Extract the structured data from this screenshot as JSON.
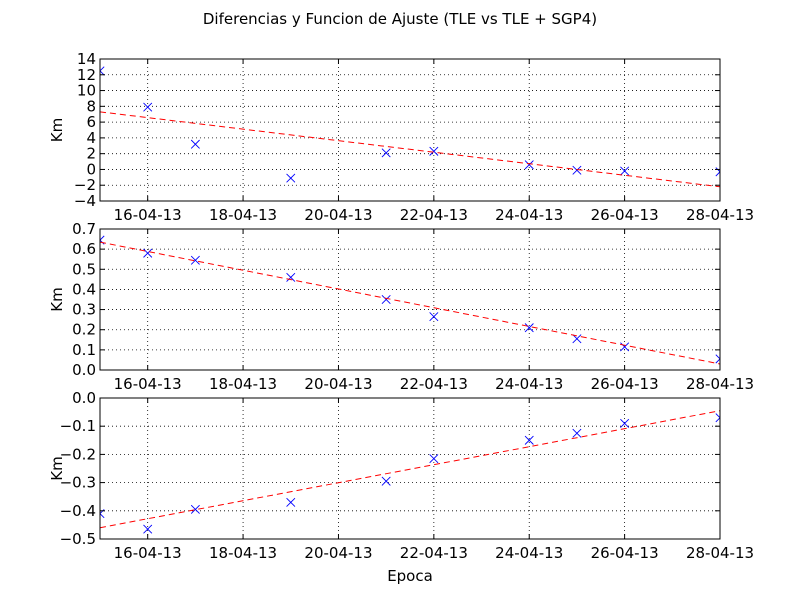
{
  "figure": {
    "title": "Diferencias y Funcion de Ajuste (TLE vs TLE + SGP4)",
    "xlabel": "Epoca"
  },
  "chart_data": [
    {
      "type": "scatter",
      "ylabel": "Km",
      "xlim": [
        "15-04-13",
        "28-04-13"
      ],
      "ylim": [
        -4,
        14
      ],
      "grid": true,
      "x_ticks": [
        "16-04-13",
        "18-04-13",
        "20-04-13",
        "22-04-13",
        "24-04-13",
        "26-04-13",
        "28-04-13"
      ],
      "y_ticks": [
        "−4",
        "−2",
        "0",
        "2",
        "4",
        "6",
        "8",
        "10",
        "12",
        "14"
      ],
      "y_tick_values": [
        -4,
        -2,
        0,
        2,
        4,
        6,
        8,
        10,
        12,
        14
      ],
      "series": [
        {
          "marker": "x",
          "color": "#0000ff",
          "x": [
            "15-04-13",
            "16-04-13",
            "17-04-13",
            "19-04-13",
            "21-04-13",
            "22-04-13",
            "24-04-13",
            "25-04-13",
            "26-04-13",
            "28-04-13"
          ],
          "y": [
            12.5,
            7.9,
            3.2,
            -1.1,
            2.1,
            2.3,
            0.6,
            -0.1,
            -0.2,
            -0.3
          ]
        },
        {
          "line": "dashed",
          "color": "#ff0000",
          "x": [
            "15-04-13",
            "28-04-13"
          ],
          "y": [
            7.3,
            -2.2
          ]
        }
      ]
    },
    {
      "type": "scatter",
      "ylabel": "Km",
      "xlim": [
        "15-04-13",
        "28-04-13"
      ],
      "ylim": [
        0.0,
        0.7
      ],
      "grid": true,
      "x_ticks": [
        "16-04-13",
        "18-04-13",
        "20-04-13",
        "22-04-13",
        "24-04-13",
        "26-04-13",
        "28-04-13"
      ],
      "y_ticks": [
        "0.0",
        "0.1",
        "0.2",
        "0.3",
        "0.4",
        "0.5",
        "0.6",
        "0.7"
      ],
      "y_tick_values": [
        0.0,
        0.1,
        0.2,
        0.3,
        0.4,
        0.5,
        0.6,
        0.7
      ],
      "series": [
        {
          "marker": "x",
          "color": "#0000ff",
          "x": [
            "15-04-13",
            "16-04-13",
            "17-04-13",
            "19-04-13",
            "21-04-13",
            "22-04-13",
            "24-04-13",
            "25-04-13",
            "26-04-13",
            "28-04-13"
          ],
          "y": [
            0.645,
            0.58,
            0.545,
            0.46,
            0.35,
            0.265,
            0.21,
            0.155,
            0.115,
            0.055
          ]
        },
        {
          "line": "dashed",
          "color": "#ff0000",
          "x": [
            "15-04-13",
            "28-04-13"
          ],
          "y": [
            0.635,
            0.03
          ]
        }
      ]
    },
    {
      "type": "scatter",
      "ylabel": "Km",
      "xlim": [
        "15-04-13",
        "28-04-13"
      ],
      "ylim": [
        -0.5,
        0.0
      ],
      "grid": true,
      "x_ticks": [
        "16-04-13",
        "18-04-13",
        "20-04-13",
        "22-04-13",
        "24-04-13",
        "26-04-13",
        "28-04-13"
      ],
      "y_ticks": [
        "−0.5",
        "−0.4",
        "−0.3",
        "−0.2",
        "−0.1",
        "0.0"
      ],
      "y_tick_values": [
        -0.5,
        -0.4,
        -0.3,
        -0.2,
        -0.1,
        0.0
      ],
      "series": [
        {
          "marker": "x",
          "color": "#0000ff",
          "x": [
            "15-04-13",
            "16-04-13",
            "17-04-13",
            "19-04-13",
            "21-04-13",
            "22-04-13",
            "24-04-13",
            "25-04-13",
            "26-04-13",
            "28-04-13"
          ],
          "y": [
            -0.41,
            -0.465,
            -0.395,
            -0.37,
            -0.295,
            -0.215,
            -0.15,
            -0.125,
            -0.09,
            -0.07
          ]
        },
        {
          "line": "dashed",
          "color": "#ff0000",
          "x": [
            "15-04-13",
            "28-04-13"
          ],
          "y": [
            -0.46,
            -0.045
          ]
        }
      ]
    }
  ]
}
